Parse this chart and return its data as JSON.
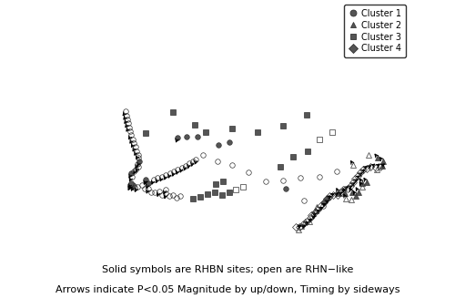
{
  "caption_line1": "Solid symbols are RHBN sites; open are RHN−like",
  "caption_line2": "Arrows indicate P<0.05 Magnitude by up/down, Timing by sideways",
  "legend_labels": [
    "Cluster 1",
    "Cluster 2",
    "Cluster 3",
    "Cluster 4"
  ],
  "legend_markers": [
    "o",
    "^",
    "s",
    "D"
  ],
  "map_lon_min": -141,
  "map_lon_max": -52,
  "map_lat_min": 41,
  "map_lat_max": 84,
  "background_color": "#c8c8c8",
  "land_color": "#d8d8d8",
  "ocean_color": "#c8c8c8",
  "border_color": "#555555",
  "arrow_color": "#222222",
  "stations": [
    {
      "lon": -123.1,
      "lat": 49.2,
      "cluster": 1,
      "solid": true,
      "mag": -1,
      "tim": 0
    },
    {
      "lon": -123.3,
      "lat": 49.0,
      "cluster": 1,
      "solid": false,
      "mag": -1,
      "tim": 0
    },
    {
      "lon": -122.8,
      "lat": 49.3,
      "cluster": 1,
      "solid": false,
      "mag": 0,
      "tim": 0
    },
    {
      "lon": -122.5,
      "lat": 49.1,
      "cluster": 1,
      "solid": false,
      "mag": -1,
      "tim": 0
    },
    {
      "lon": -123.5,
      "lat": 49.4,
      "cluster": 1,
      "solid": true,
      "mag": -1,
      "tim": 0
    },
    {
      "lon": -122.0,
      "lat": 49.0,
      "cluster": 1,
      "solid": false,
      "mag": 0,
      "tim": 0
    },
    {
      "lon": -121.5,
      "lat": 49.2,
      "cluster": 1,
      "solid": false,
      "mag": -1,
      "tim": 0
    },
    {
      "lon": -120.5,
      "lat": 49.8,
      "cluster": 1,
      "solid": false,
      "mag": 0,
      "tim": 0
    },
    {
      "lon": -119.5,
      "lat": 49.5,
      "cluster": 1,
      "solid": false,
      "mag": 0,
      "tim": 0
    },
    {
      "lon": -118.5,
      "lat": 49.7,
      "cluster": 1,
      "solid": false,
      "mag": -1,
      "tim": 0
    },
    {
      "lon": -117.5,
      "lat": 49.2,
      "cluster": 1,
      "solid": false,
      "mag": 0,
      "tim": 0
    },
    {
      "lon": -116.5,
      "lat": 49.5,
      "cluster": 1,
      "solid": false,
      "mag": 0,
      "tim": 0
    },
    {
      "lon": -115.5,
      "lat": 49.8,
      "cluster": 1,
      "solid": false,
      "mag": -1,
      "tim": 0
    },
    {
      "lon": -114.5,
      "lat": 49.3,
      "cluster": 1,
      "solid": false,
      "mag": 0,
      "tim": 0
    },
    {
      "lon": -114.0,
      "lat": 50.5,
      "cluster": 1,
      "solid": false,
      "mag": -1,
      "tim": 0
    },
    {
      "lon": -113.5,
      "lat": 49.8,
      "cluster": 1,
      "solid": false,
      "mag": -1,
      "tim": 0
    },
    {
      "lon": -112.5,
      "lat": 49.5,
      "cluster": 1,
      "solid": false,
      "mag": 0,
      "tim": 0
    },
    {
      "lon": -111.5,
      "lat": 49.8,
      "cluster": 1,
      "solid": false,
      "mag": 0,
      "tim": 0
    },
    {
      "lon": -110.5,
      "lat": 49.5,
      "cluster": 1,
      "solid": false,
      "mag": 0,
      "tim": 0
    },
    {
      "lon": -109.5,
      "lat": 50.0,
      "cluster": 1,
      "solid": false,
      "mag": 0,
      "tim": 0
    },
    {
      "lon": -124.0,
      "lat": 50.5,
      "cluster": 1,
      "solid": false,
      "mag": -1,
      "tim": 0
    },
    {
      "lon": -124.5,
      "lat": 51.0,
      "cluster": 1,
      "solid": true,
      "mag": -1,
      "tim": 0
    },
    {
      "lon": -124.2,
      "lat": 51.5,
      "cluster": 1,
      "solid": false,
      "mag": 0,
      "tim": 0
    },
    {
      "lon": -123.8,
      "lat": 52.0,
      "cluster": 1,
      "solid": false,
      "mag": -1,
      "tim": 0
    },
    {
      "lon": -123.5,
      "lat": 52.5,
      "cluster": 1,
      "solid": false,
      "mag": -1,
      "tim": 0
    },
    {
      "lon": -124.0,
      "lat": 53.0,
      "cluster": 1,
      "solid": false,
      "mag": -1,
      "tim": 0
    },
    {
      "lon": -123.8,
      "lat": 53.5,
      "cluster": 1,
      "solid": true,
      "mag": -1,
      "tim": 0
    },
    {
      "lon": -124.5,
      "lat": 54.0,
      "cluster": 1,
      "solid": false,
      "mag": 0,
      "tim": 0
    },
    {
      "lon": -125.0,
      "lat": 54.5,
      "cluster": 1,
      "solid": false,
      "mag": -1,
      "tim": 0
    },
    {
      "lon": -126.0,
      "lat": 55.0,
      "cluster": 1,
      "solid": false,
      "mag": -1,
      "tim": 0
    },
    {
      "lon": -127.0,
      "lat": 55.5,
      "cluster": 1,
      "solid": false,
      "mag": -1,
      "tim": 0
    },
    {
      "lon": -128.0,
      "lat": 56.0,
      "cluster": 1,
      "solid": false,
      "mag": -1,
      "tim": 0
    },
    {
      "lon": -129.0,
      "lat": 56.5,
      "cluster": 1,
      "solid": false,
      "mag": -1,
      "tim": 0
    },
    {
      "lon": -130.0,
      "lat": 57.0,
      "cluster": 1,
      "solid": false,
      "mag": -1,
      "tim": 0
    },
    {
      "lon": -131.0,
      "lat": 57.5,
      "cluster": 1,
      "solid": false,
      "mag": 0,
      "tim": 0
    },
    {
      "lon": -132.0,
      "lat": 58.0,
      "cluster": 1,
      "solid": false,
      "mag": -1,
      "tim": 0
    },
    {
      "lon": -133.0,
      "lat": 58.5,
      "cluster": 1,
      "solid": false,
      "mag": -1,
      "tim": 0
    },
    {
      "lon": -134.0,
      "lat": 59.0,
      "cluster": 1,
      "solid": false,
      "mag": -1,
      "tim": 0
    },
    {
      "lon": -135.0,
      "lat": 59.5,
      "cluster": 1,
      "solid": false,
      "mag": -1,
      "tim": 0
    },
    {
      "lon": -136.0,
      "lat": 60.0,
      "cluster": 1,
      "solid": false,
      "mag": -1,
      "tim": 0
    },
    {
      "lon": -115.0,
      "lat": 60.0,
      "cluster": 1,
      "solid": true,
      "mag": -1,
      "tim": 0
    },
    {
      "lon": -112.0,
      "lat": 60.5,
      "cluster": 1,
      "solid": true,
      "mag": 0,
      "tim": 0
    },
    {
      "lon": -108.0,
      "lat": 61.0,
      "cluster": 1,
      "solid": true,
      "mag": 0,
      "tim": 0
    },
    {
      "lon": -100.0,
      "lat": 60.0,
      "cluster": 1,
      "solid": true,
      "mag": 0,
      "tim": 0
    },
    {
      "lon": -96.0,
      "lat": 60.5,
      "cluster": 1,
      "solid": true,
      "mag": 0,
      "tim": 0
    },
    {
      "lon": -80.0,
      "lat": 51.0,
      "cluster": 1,
      "solid": true,
      "mag": 0,
      "tim": 0
    },
    {
      "lon": -76.0,
      "lat": 48.0,
      "cluster": 1,
      "solid": false,
      "mag": 0,
      "tim": 0
    },
    {
      "lon": -72.0,
      "lat": 46.0,
      "cluster": 1,
      "solid": false,
      "mag": 0,
      "tim": 0
    },
    {
      "lon": -70.0,
      "lat": 47.0,
      "cluster": 1,
      "solid": false,
      "mag": 0,
      "tim": 0
    },
    {
      "lon": -119.0,
      "lat": 50.5,
      "cluster": 1,
      "solid": true,
      "mag": -1,
      "tim": -1
    },
    {
      "lon": -120.0,
      "lat": 51.0,
      "cluster": 1,
      "solid": true,
      "mag": -1,
      "tim": 0
    },
    {
      "lon": -118.0,
      "lat": 51.5,
      "cluster": 1,
      "solid": false,
      "mag": -1,
      "tim": 0
    },
    {
      "lon": -117.0,
      "lat": 52.0,
      "cluster": 1,
      "solid": false,
      "mag": -1,
      "tim": 0
    },
    {
      "lon": -116.0,
      "lat": 52.5,
      "cluster": 1,
      "solid": false,
      "mag": -1,
      "tim": 0
    },
    {
      "lon": -115.0,
      "lat": 53.0,
      "cluster": 1,
      "solid": false,
      "mag": -1,
      "tim": 0
    },
    {
      "lon": -114.0,
      "lat": 53.5,
      "cluster": 1,
      "solid": false,
      "mag": -1,
      "tim": 0
    },
    {
      "lon": -113.0,
      "lat": 54.0,
      "cluster": 1,
      "solid": false,
      "mag": -1,
      "tim": 0
    },
    {
      "lon": -112.0,
      "lat": 54.5,
      "cluster": 1,
      "solid": false,
      "mag": -1,
      "tim": 0
    },
    {
      "lon": -111.0,
      "lat": 55.0,
      "cluster": 1,
      "solid": false,
      "mag": -1,
      "tim": 0
    },
    {
      "lon": -110.0,
      "lat": 55.5,
      "cluster": 1,
      "solid": false,
      "mag": -1,
      "tim": 0
    },
    {
      "lon": -109.0,
      "lat": 56.0,
      "cluster": 1,
      "solid": false,
      "mag": -1,
      "tim": 0
    },
    {
      "lon": -108.0,
      "lat": 56.5,
      "cluster": 1,
      "solid": false,
      "mag": -1,
      "tim": 0
    },
    {
      "lon": -107.0,
      "lat": 57.0,
      "cluster": 1,
      "solid": false,
      "mag": -1,
      "tim": 0
    },
    {
      "lon": -105.0,
      "lat": 58.0,
      "cluster": 1,
      "solid": false,
      "mag": 0,
      "tim": 0
    },
    {
      "lon": -100.0,
      "lat": 57.0,
      "cluster": 1,
      "solid": false,
      "mag": 0,
      "tim": 0
    },
    {
      "lon": -95.0,
      "lat": 56.5,
      "cluster": 1,
      "solid": false,
      "mag": 0,
      "tim": 0
    },
    {
      "lon": -90.0,
      "lat": 55.0,
      "cluster": 1,
      "solid": false,
      "mag": 0,
      "tim": 0
    },
    {
      "lon": -85.0,
      "lat": 53.0,
      "cluster": 1,
      "solid": false,
      "mag": 0,
      "tim": 0
    },
    {
      "lon": -80.0,
      "lat": 52.5,
      "cluster": 1,
      "solid": false,
      "mag": 0,
      "tim": 0
    },
    {
      "lon": -75.0,
      "lat": 52.0,
      "cluster": 1,
      "solid": false,
      "mag": 0,
      "tim": 0
    },
    {
      "lon": -70.0,
      "lat": 51.0,
      "cluster": 1,
      "solid": false,
      "mag": 0,
      "tim": 0
    },
    {
      "lon": -65.0,
      "lat": 50.5,
      "cluster": 1,
      "solid": false,
      "mag": 0,
      "tim": 0
    },
    {
      "lon": -67.0,
      "lat": 47.0,
      "cluster": 2,
      "solid": true,
      "mag": 1,
      "tim": 0
    },
    {
      "lon": -65.5,
      "lat": 46.5,
      "cluster": 2,
      "solid": true,
      "mag": 1,
      "tim": 0
    },
    {
      "lon": -64.0,
      "lat": 46.0,
      "cluster": 2,
      "solid": true,
      "mag": 1,
      "tim": 0
    },
    {
      "lon": -66.0,
      "lat": 45.5,
      "cluster": 2,
      "solid": false,
      "mag": 1,
      "tim": 0
    },
    {
      "lon": -65.0,
      "lat": 45.0,
      "cluster": 2,
      "solid": false,
      "mag": 0,
      "tim": 0
    },
    {
      "lon": -63.5,
      "lat": 45.2,
      "cluster": 2,
      "solid": true,
      "mag": 1,
      "tim": 0
    },
    {
      "lon": -62.5,
      "lat": 45.5,
      "cluster": 2,
      "solid": true,
      "mag": 1,
      "tim": 0
    },
    {
      "lon": -61.0,
      "lat": 46.0,
      "cluster": 2,
      "solid": false,
      "mag": 1,
      "tim": 0
    },
    {
      "lon": -60.5,
      "lat": 46.5,
      "cluster": 2,
      "solid": true,
      "mag": 1,
      "tim": 0
    },
    {
      "lon": -59.5,
      "lat": 46.2,
      "cluster": 2,
      "solid": true,
      "mag": 1,
      "tim": 0
    },
    {
      "lon": -75.0,
      "lat": 45.5,
      "cluster": 2,
      "solid": false,
      "mag": 0,
      "tim": 0
    },
    {
      "lon": -74.0,
      "lat": 45.8,
      "cluster": 2,
      "solid": false,
      "mag": 0,
      "tim": 0
    },
    {
      "lon": -73.5,
      "lat": 46.2,
      "cluster": 2,
      "solid": false,
      "mag": 0,
      "tim": 0
    },
    {
      "lon": -79.5,
      "lat": 43.5,
      "cluster": 2,
      "solid": false,
      "mag": 0,
      "tim": 0
    },
    {
      "lon": -78.5,
      "lat": 44.0,
      "cluster": 2,
      "solid": false,
      "mag": 0,
      "tim": 0
    },
    {
      "lon": -77.5,
      "lat": 44.5,
      "cluster": 2,
      "solid": false,
      "mag": 0,
      "tim": 0
    },
    {
      "lon": -76.5,
      "lat": 44.3,
      "cluster": 2,
      "solid": false,
      "mag": 0,
      "tim": 0
    },
    {
      "lon": -60.0,
      "lat": 50.0,
      "cluster": 2,
      "solid": false,
      "mag": 1,
      "tim": 0
    },
    {
      "lon": -55.0,
      "lat": 50.0,
      "cluster": 2,
      "solid": false,
      "mag": 0,
      "tim": 0
    },
    {
      "lon": -53.5,
      "lat": 48.5,
      "cluster": 2,
      "solid": true,
      "mag": 1,
      "tim": 0
    },
    {
      "lon": -53.0,
      "lat": 47.5,
      "cluster": 2,
      "solid": true,
      "mag": 1,
      "tim": 0
    },
    {
      "lon": -54.0,
      "lat": 47.0,
      "cluster": 2,
      "solid": true,
      "mag": 0,
      "tim": 0
    },
    {
      "lon": -55.5,
      "lat": 47.0,
      "cluster": 2,
      "solid": false,
      "mag": 0,
      "tim": 0
    },
    {
      "lon": -106.0,
      "lat": 50.0,
      "cluster": 3,
      "solid": true,
      "mag": 0,
      "tim": 0
    },
    {
      "lon": -104.0,
      "lat": 50.5,
      "cluster": 3,
      "solid": true,
      "mag": 0,
      "tim": 0
    },
    {
      "lon": -102.0,
      "lat": 51.0,
      "cluster": 3,
      "solid": true,
      "mag": 0,
      "tim": 0
    },
    {
      "lon": -100.0,
      "lat": 51.5,
      "cluster": 3,
      "solid": true,
      "mag": 0,
      "tim": 0
    },
    {
      "lon": -98.0,
      "lat": 51.0,
      "cluster": 3,
      "solid": true,
      "mag": 0,
      "tim": 0
    },
    {
      "lon": -96.0,
      "lat": 51.5,
      "cluster": 3,
      "solid": true,
      "mag": 0,
      "tim": 0
    },
    {
      "lon": -94.0,
      "lat": 52.0,
      "cluster": 3,
      "solid": false,
      "mag": 0,
      "tim": 0
    },
    {
      "lon": -92.0,
      "lat": 52.5,
      "cluster": 3,
      "solid": false,
      "mag": 0,
      "tim": 0
    },
    {
      "lon": -100.0,
      "lat": 53.0,
      "cluster": 3,
      "solid": true,
      "mag": 0,
      "tim": 0
    },
    {
      "lon": -98.0,
      "lat": 53.5,
      "cluster": 3,
      "solid": true,
      "mag": 0,
      "tim": 0
    },
    {
      "lon": -126.0,
      "lat": 58.5,
      "cluster": 3,
      "solid": true,
      "mag": 0,
      "tim": 0
    },
    {
      "lon": -120.0,
      "lat": 64.0,
      "cluster": 3,
      "solid": true,
      "mag": 0,
      "tim": 0
    },
    {
      "lon": -110.0,
      "lat": 63.0,
      "cluster": 3,
      "solid": true,
      "mag": 0,
      "tim": 0
    },
    {
      "lon": -105.0,
      "lat": 62.0,
      "cluster": 3,
      "solid": true,
      "mag": 0,
      "tim": 0
    },
    {
      "lon": -95.0,
      "lat": 63.0,
      "cluster": 3,
      "solid": true,
      "mag": 0,
      "tim": 0
    },
    {
      "lon": -85.0,
      "lat": 62.0,
      "cluster": 3,
      "solid": true,
      "mag": 0,
      "tim": 0
    },
    {
      "lon": -75.0,
      "lat": 62.0,
      "cluster": 3,
      "solid": true,
      "mag": 0,
      "tim": 0
    },
    {
      "lon": -65.0,
      "lat": 62.0,
      "cluster": 3,
      "solid": true,
      "mag": 0,
      "tim": 0
    },
    {
      "lon": -80.0,
      "lat": 55.0,
      "cluster": 3,
      "solid": true,
      "mag": 0,
      "tim": 0
    },
    {
      "lon": -75.0,
      "lat": 56.0,
      "cluster": 3,
      "solid": true,
      "mag": 0,
      "tim": 0
    },
    {
      "lon": -70.0,
      "lat": 56.0,
      "cluster": 3,
      "solid": true,
      "mag": 0,
      "tim": 0
    },
    {
      "lon": -65.0,
      "lat": 57.0,
      "cluster": 3,
      "solid": false,
      "mag": 0,
      "tim": 0
    },
    {
      "lon": -60.0,
      "lat": 57.0,
      "cluster": 3,
      "solid": false,
      "mag": 0,
      "tim": 0
    },
    {
      "lon": -80.0,
      "lat": 44.0,
      "cluster": 4,
      "solid": false,
      "mag": 0,
      "tim": 1
    },
    {
      "lon": -79.0,
      "lat": 43.8,
      "cluster": 4,
      "solid": false,
      "mag": 0,
      "tim": 1
    },
    {
      "lon": -78.0,
      "lat": 44.2,
      "cluster": 4,
      "solid": false,
      "mag": 0,
      "tim": 1
    },
    {
      "lon": -77.0,
      "lat": 44.5,
      "cluster": 4,
      "solid": false,
      "mag": 0,
      "tim": 1
    },
    {
      "lon": -76.0,
      "lat": 44.8,
      "cluster": 4,
      "solid": false,
      "mag": 0,
      "tim": 1
    },
    {
      "lon": -75.5,
      "lat": 45.2,
      "cluster": 4,
      "solid": false,
      "mag": 0,
      "tim": 1
    },
    {
      "lon": -74.5,
      "lat": 45.5,
      "cluster": 4,
      "solid": false,
      "mag": 0,
      "tim": 1
    },
    {
      "lon": -73.5,
      "lat": 45.8,
      "cluster": 4,
      "solid": false,
      "mag": 0,
      "tim": 1
    },
    {
      "lon": -72.5,
      "lat": 46.2,
      "cluster": 4,
      "solid": false,
      "mag": 0,
      "tim": 1
    },
    {
      "lon": -71.5,
      "lat": 46.5,
      "cluster": 4,
      "solid": true,
      "mag": 0,
      "tim": 1
    },
    {
      "lon": -70.5,
      "lat": 47.0,
      "cluster": 4,
      "solid": true,
      "mag": 0,
      "tim": 1
    },
    {
      "lon": -69.5,
      "lat": 47.2,
      "cluster": 4,
      "solid": false,
      "mag": 0,
      "tim": 1
    },
    {
      "lon": -68.5,
      "lat": 47.0,
      "cluster": 4,
      "solid": false,
      "mag": 0,
      "tim": 1
    },
    {
      "lon": -67.5,
      "lat": 46.8,
      "cluster": 4,
      "solid": false,
      "mag": 0,
      "tim": 1
    },
    {
      "lon": -66.5,
      "lat": 47.0,
      "cluster": 4,
      "solid": false,
      "mag": 0,
      "tim": 1
    },
    {
      "lon": -65.5,
      "lat": 47.2,
      "cluster": 4,
      "solid": false,
      "mag": 0,
      "tim": 1
    },
    {
      "lon": -64.5,
      "lat": 47.0,
      "cluster": 4,
      "solid": false,
      "mag": 0,
      "tim": 1
    },
    {
      "lon": -63.5,
      "lat": 47.2,
      "cluster": 4,
      "solid": false,
      "mag": 0,
      "tim": 1
    },
    {
      "lon": -62.5,
      "lat": 47.5,
      "cluster": 4,
      "solid": false,
      "mag": 0,
      "tim": 1
    },
    {
      "lon": -61.5,
      "lat": 47.8,
      "cluster": 4,
      "solid": false,
      "mag": 0,
      "tim": 1
    },
    {
      "lon": -60.5,
      "lat": 48.0,
      "cluster": 4,
      "solid": false,
      "mag": 0,
      "tim": 1
    },
    {
      "lon": -59.5,
      "lat": 48.2,
      "cluster": 4,
      "solid": false,
      "mag": 0,
      "tim": 1
    },
    {
      "lon": -58.5,
      "lat": 48.5,
      "cluster": 4,
      "solid": false,
      "mag": 0,
      "tim": 1
    },
    {
      "lon": -57.5,
      "lat": 48.2,
      "cluster": 4,
      "solid": false,
      "mag": 0,
      "tim": 1
    },
    {
      "lon": -56.5,
      "lat": 48.0,
      "cluster": 4,
      "solid": false,
      "mag": 0,
      "tim": 1
    },
    {
      "lon": -55.5,
      "lat": 47.5,
      "cluster": 4,
      "solid": false,
      "mag": 0,
      "tim": 1
    },
    {
      "lon": -54.5,
      "lat": 47.0,
      "cluster": 4,
      "solid": false,
      "mag": 0,
      "tim": 1
    }
  ]
}
